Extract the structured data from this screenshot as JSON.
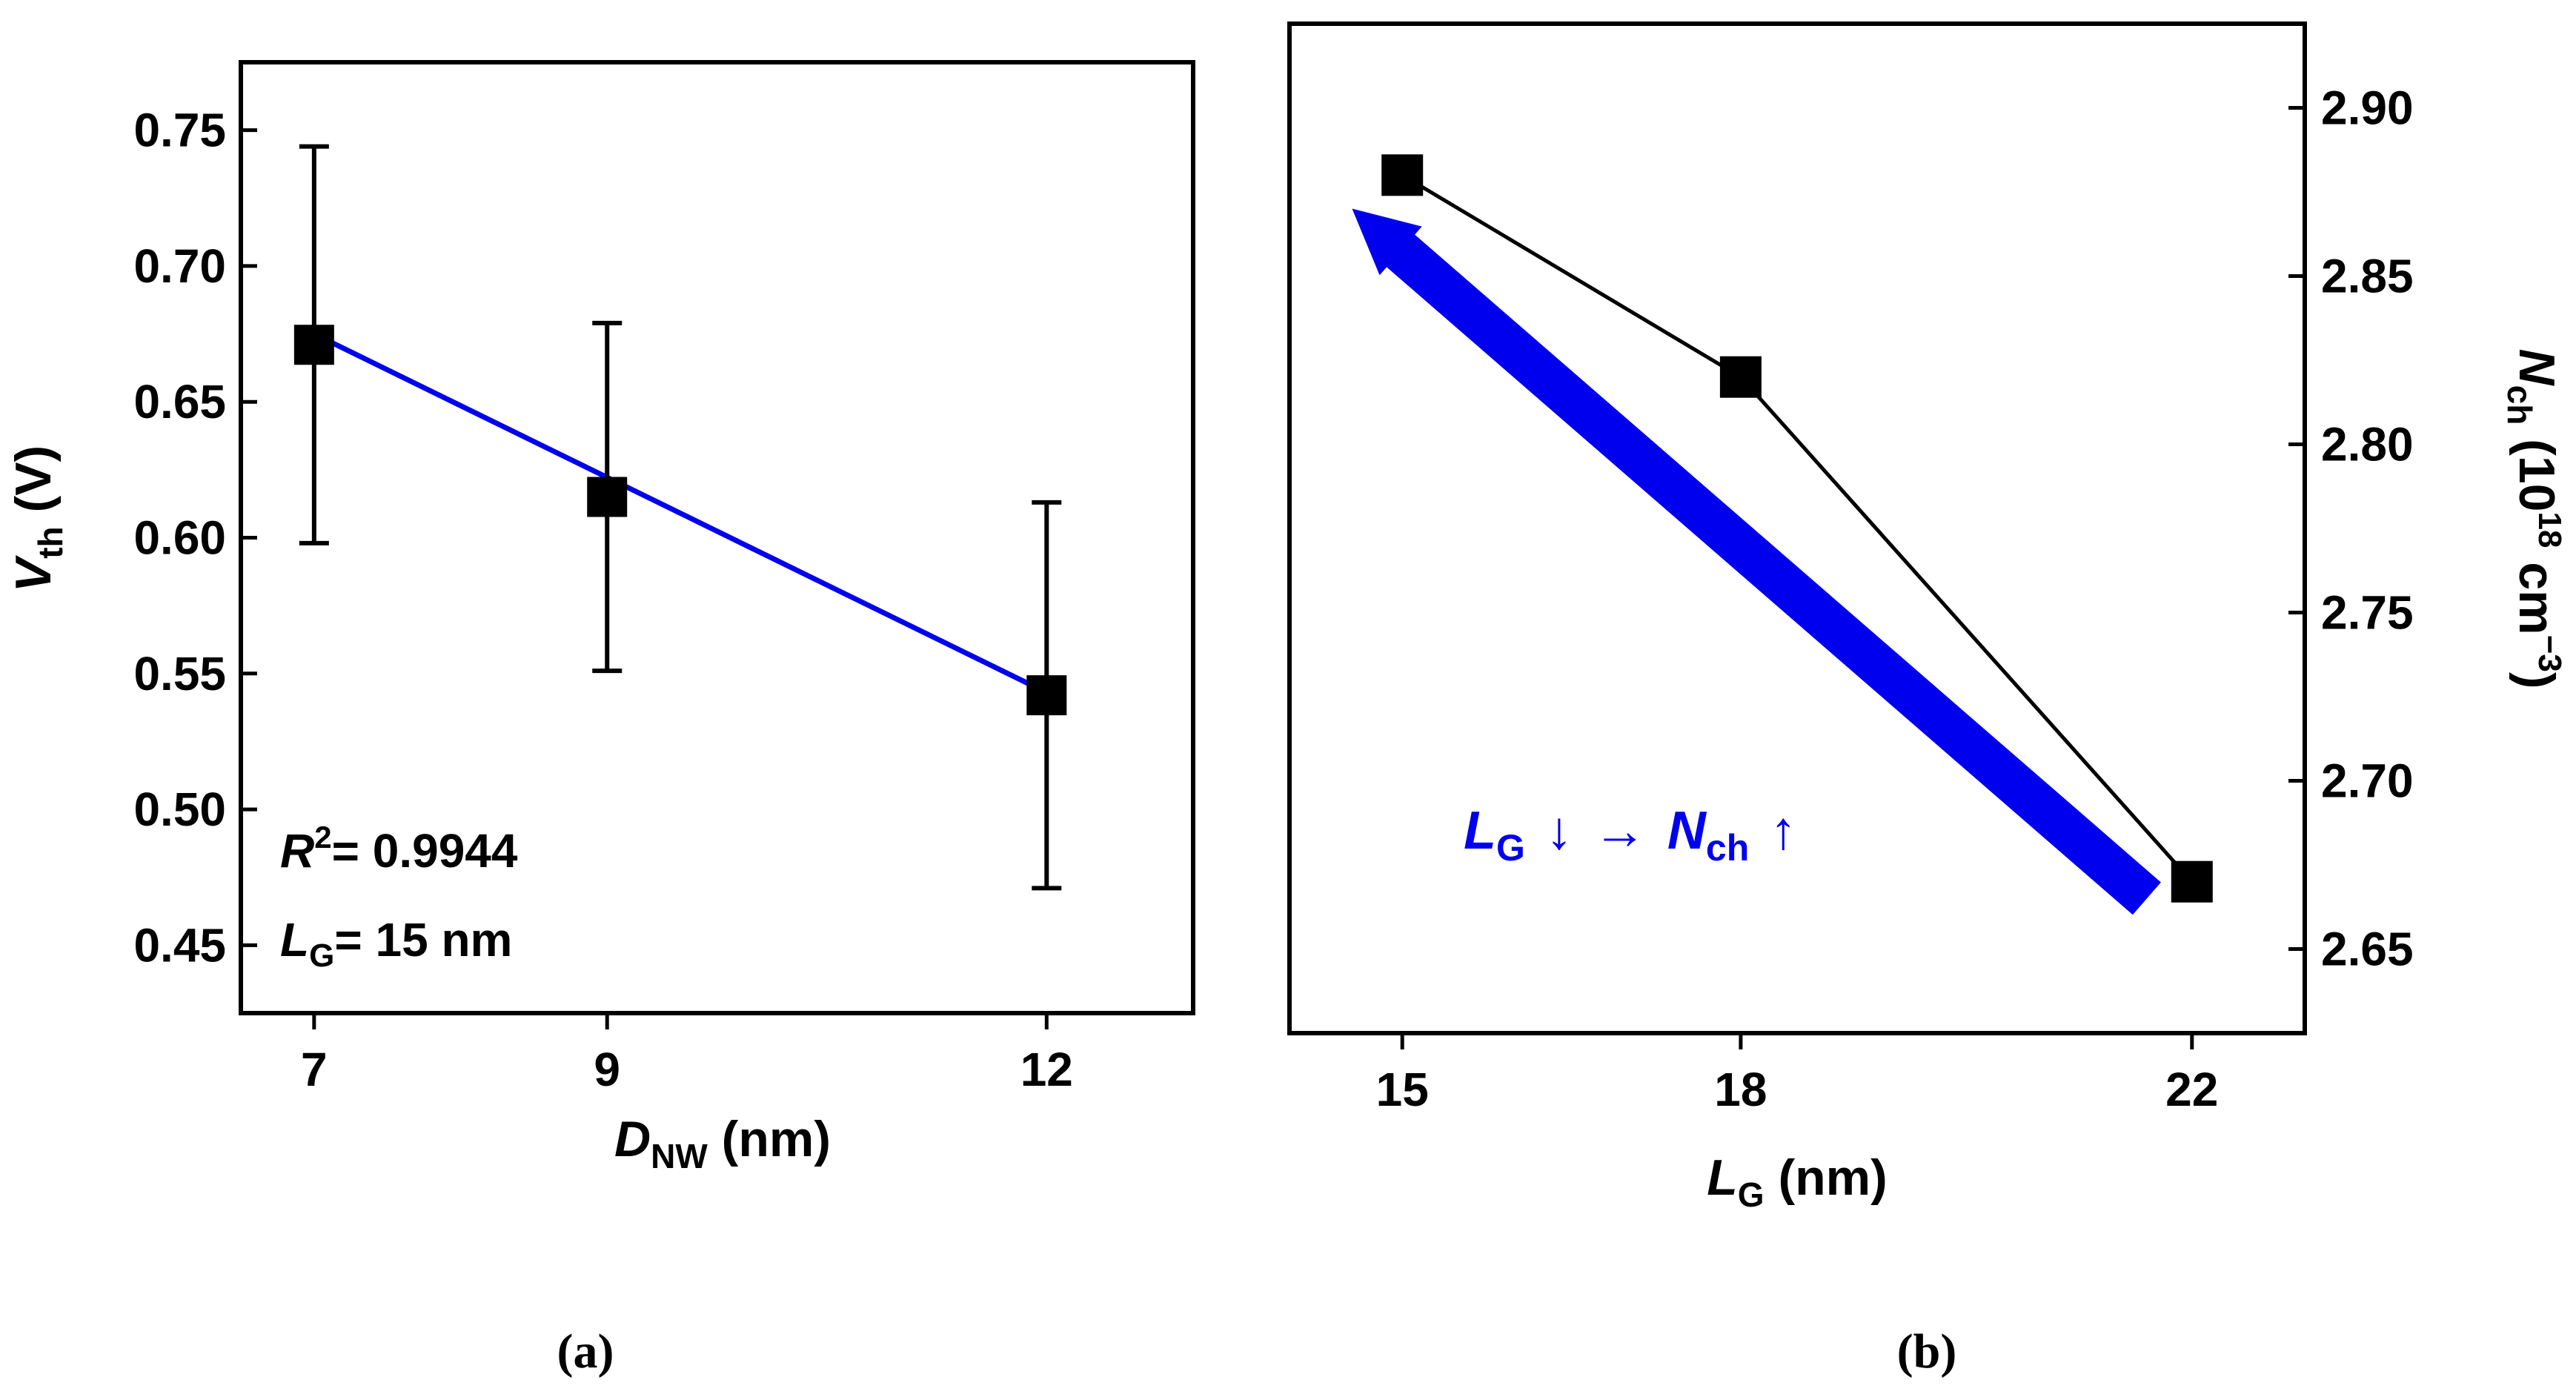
{
  "chart_data": [
    {
      "type": "scatter",
      "panel_label": "(a)",
      "title": "",
      "xlabel": {
        "main": "D",
        "sub": "NW",
        "unit": " (nm)"
      },
      "ylabel": {
        "main": "V",
        "sub": "th",
        "unit": " (V)"
      },
      "x_ticks": [
        "7",
        "9",
        "12"
      ],
      "y_ticks": [
        "0.75",
        "0.70",
        "0.65",
        "0.60",
        "0.55",
        "0.50",
        "0.45"
      ],
      "xlim": [
        6.5,
        13.0
      ],
      "ylim": [
        0.425,
        0.775
      ],
      "grid": false,
      "series": [
        {
          "name": "Vth",
          "marker": "square",
          "color": "#000000",
          "x": [
            7,
            9,
            12
          ],
          "y": [
            0.671,
            0.615,
            0.542
          ],
          "error": [
            0.073,
            0.064,
            0.071
          ]
        }
      ],
      "fit": {
        "color": "#0000ee",
        "x": [
          7,
          12
        ],
        "y": [
          0.675,
          0.543
        ]
      },
      "annotations": [
        {
          "main": "R",
          "sup": "2",
          "text": "= 0.9944"
        },
        {
          "main": "L",
          "sub": "G",
          "text": "= 15 nm"
        }
      ]
    },
    {
      "type": "line",
      "panel_label": "(b)",
      "title": "",
      "xlabel": {
        "main": "L",
        "sub": "G",
        "unit": " (nm)"
      },
      "ylabel": {
        "main": "N",
        "sub": "ch",
        "unit_pre": " (10",
        "unit_sup1": "18",
        "unit_mid": " cm",
        "unit_sup2": "−3",
        "unit_post": ")"
      },
      "x_ticks": [
        "15",
        "18",
        "22"
      ],
      "y_ticks": [
        "2.90",
        "2.85",
        "2.80",
        "2.75",
        "2.70",
        "2.65"
      ],
      "y_axis_side": "right",
      "xlim": [
        14.0,
        23.0
      ],
      "ylim": [
        2.625,
        2.925
      ],
      "grid": false,
      "series": [
        {
          "name": "Nch",
          "marker": "square",
          "color": "#000000",
          "x": [
            15,
            18,
            22
          ],
          "y": [
            2.88,
            2.82,
            2.67
          ]
        }
      ],
      "arrow": {
        "color": "#0000ee",
        "from": [
          21.6,
          2.665
        ],
        "to": [
          14.9,
          2.86
        ]
      },
      "annotation": {
        "l": "L",
        "l_sub": "G",
        "down": "↓",
        "arrow": "→",
        "n": "N",
        "n_sub": "ch",
        "up": "↑",
        "color": "#0000ee"
      }
    }
  ]
}
